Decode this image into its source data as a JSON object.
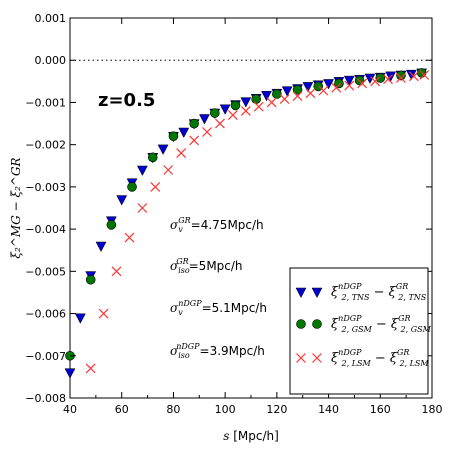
{
  "chart_data": {
    "type": "scatter",
    "title": "",
    "xlabel": "s",
    "xlabel_unit": "[Mpc/h]",
    "ylabel": "ξ₂^MG − ξ₂^GR",
    "xlim": [
      40,
      180
    ],
    "ylim": [
      -0.008,
      0.001
    ],
    "xticks": [
      40,
      60,
      80,
      100,
      120,
      140,
      160,
      180
    ],
    "yticks": [
      0.001,
      0.0,
      -0.001,
      -0.002,
      -0.003,
      -0.004,
      -0.005,
      -0.006,
      -0.007,
      -0.008
    ],
    "xtick_labels": [
      "40",
      "60",
      "80",
      "100",
      "120",
      "140",
      "160",
      "180"
    ],
    "ytick_labels": [
      "0.001",
      "0.000",
      "−0.001",
      "−0.002",
      "−0.003",
      "−0.004",
      "−0.005",
      "−0.006",
      "−0.007",
      "−0.008"
    ],
    "reference_line": 0.0,
    "panel_label": "z=0.5",
    "annotations": [
      {
        "symbol": "σ",
        "sup": "GR",
        "sub": "v",
        "value": "=4.75",
        "unit": "Mpc/h"
      },
      {
        "symbol": "σ",
        "sup": "GR",
        "sub": "iso",
        "value": "=5",
        "unit": "Mpc/h"
      },
      {
        "symbol": "σ",
        "sup": "nDGP",
        "sub": "v",
        "value": "=5.1",
        "unit": "Mpc/h"
      },
      {
        "symbol": "σ",
        "sup": "nDGP",
        "sub": "iso",
        "value": "=3.9",
        "unit": "Mpc/h"
      }
    ],
    "legend_position": "lower-right",
    "series": [
      {
        "legend": {
          "sym": "ξ",
          "sup": "nDGP",
          "sub": "2, TNS",
          "sup2": "GR",
          "sub2": "2, TNS"
        },
        "marker": "triangle-down",
        "color": "#0000cc",
        "x": [
          40,
          44,
          48,
          52,
          56,
          60,
          64,
          68,
          72,
          76,
          80,
          84,
          88,
          92,
          96,
          100,
          104,
          108,
          112,
          116,
          120,
          124,
          128,
          132,
          136,
          140,
          144,
          148,
          152,
          156,
          160,
          164,
          168,
          172,
          176
        ],
        "y": [
          -0.0074,
          -0.0061,
          -0.0051,
          -0.0044,
          -0.0038,
          -0.0033,
          -0.0029,
          -0.0026,
          -0.0023,
          -0.0021,
          -0.0018,
          -0.0017,
          -0.0015,
          -0.00138,
          -0.00125,
          -0.00115,
          -0.00105,
          -0.00098,
          -0.0009,
          -0.00083,
          -0.00078,
          -0.00072,
          -0.00067,
          -0.00062,
          -0.00058,
          -0.00055,
          -0.0005,
          -0.00047,
          -0.00045,
          -0.00042,
          -0.0004,
          -0.00037,
          -0.00035,
          -0.00033,
          -0.0003
        ]
      },
      {
        "legend": {
          "sym": "ξ",
          "sup": "nDGP",
          "sub": "2, GSM",
          "sup2": "GR",
          "sub2": "2, GSM"
        },
        "marker": "circle",
        "color": "#007700",
        "x": [
          40,
          48,
          56,
          64,
          72,
          80,
          88,
          96,
          104,
          112,
          120,
          128,
          136,
          144,
          152,
          160,
          168,
          176
        ],
        "y": [
          -0.007,
          -0.0052,
          -0.0039,
          -0.003,
          -0.0023,
          -0.0018,
          -0.0015,
          -0.00125,
          -0.00107,
          -0.00092,
          -0.0008,
          -0.0007,
          -0.00062,
          -0.00055,
          -0.00048,
          -0.00042,
          -0.00036,
          -0.0003
        ]
      },
      {
        "legend": {
          "sym": "ξ",
          "sup": "nDGP",
          "sub": "2, LSM",
          "sup2": "GR",
          "sub2": "2, LSM"
        },
        "marker": "x",
        "color": "#ff3333",
        "x": [
          48,
          53,
          58,
          63,
          68,
          73,
          78,
          83,
          88,
          93,
          98,
          103,
          108,
          113,
          118,
          123,
          128,
          133,
          138,
          143,
          148,
          153,
          158,
          163,
          168,
          173,
          177
        ],
        "y": [
          -0.0073,
          -0.006,
          -0.005,
          -0.0042,
          -0.0035,
          -0.003,
          -0.0026,
          -0.0022,
          -0.0019,
          -0.0017,
          -0.0015,
          -0.0013,
          -0.0012,
          -0.0011,
          -0.001,
          -0.00092,
          -0.00085,
          -0.00078,
          -0.00072,
          -0.00065,
          -0.0006,
          -0.00055,
          -0.0005,
          -0.00045,
          -0.00042,
          -0.00038,
          -0.00035
        ]
      }
    ]
  }
}
